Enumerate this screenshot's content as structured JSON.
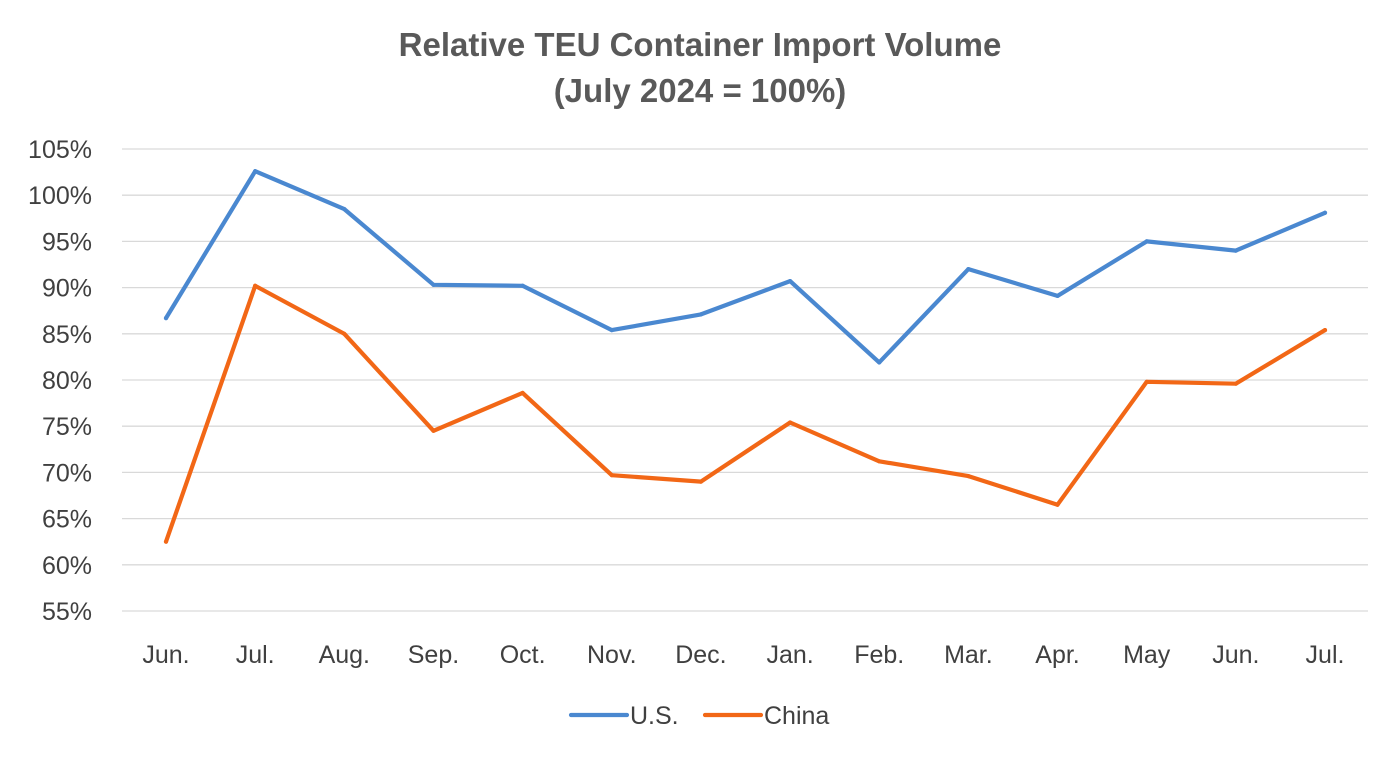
{
  "chart_data": {
    "type": "line",
    "title": [
      "Relative TEU Container Import Volume",
      "(July 2024 = 100%)"
    ],
    "xlabel": "",
    "ylabel": "",
    "categories": [
      "Jun.",
      "Jul.",
      "Aug.",
      "Sep.",
      "Oct.",
      "Nov.",
      "Dec.",
      "Jan.",
      "Feb.",
      "Mar.",
      "Apr.",
      "May",
      "Jun.",
      "Jul."
    ],
    "ylim": [
      55,
      105
    ],
    "yticks": [
      55,
      60,
      65,
      70,
      75,
      80,
      85,
      90,
      95,
      100,
      105
    ],
    "ytick_labels": [
      "55%",
      "60%",
      "65%",
      "70%",
      "75%",
      "80%",
      "85%",
      "90%",
      "95%",
      "100%",
      "105%"
    ],
    "grid": true,
    "legend_position": "bottom",
    "series": [
      {
        "name": "U.S.",
        "color": "#4a88d0",
        "values": [
          86.7,
          102.6,
          98.5,
          90.3,
          90.2,
          85.4,
          87.1,
          90.7,
          81.9,
          92.0,
          89.1,
          95.0,
          94.0,
          98.1
        ]
      },
      {
        "name": "China",
        "color": "#f26716",
        "values": [
          62.5,
          90.2,
          85.0,
          74.5,
          78.6,
          69.7,
          69.0,
          75.4,
          71.2,
          69.6,
          66.5,
          79.8,
          79.6,
          85.4
        ]
      }
    ]
  }
}
